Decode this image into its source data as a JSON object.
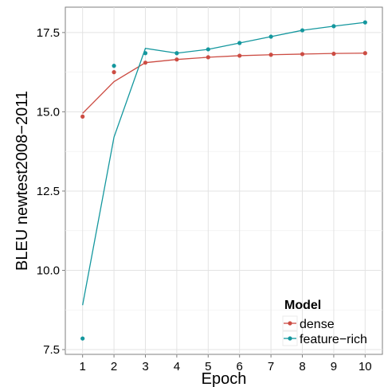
{
  "chart_data": {
    "type": "line",
    "xlabel": "Epoch",
    "ylabel": "BLEU newtest2008−2011",
    "x_ticks": [
      "1",
      "2",
      "3",
      "4",
      "5",
      "6",
      "7",
      "8",
      "9",
      "10"
    ],
    "y_ticks": [
      "7.5",
      "10.0",
      "12.5",
      "15.0",
      "17.5"
    ],
    "xlim": [
      0.45,
      10.55
    ],
    "ylim": [
      7.35,
      18.3
    ],
    "grid": true,
    "legend": {
      "title": "Model",
      "position": "bottom-right"
    },
    "series": [
      {
        "name": "dense",
        "color": "#CC4C43",
        "line": [
          14.95,
          15.95,
          16.55,
          16.65,
          16.72,
          16.77,
          16.8,
          16.82,
          16.84,
          16.85
        ],
        "points": [
          14.85,
          16.25,
          16.55,
          16.65,
          16.72,
          16.77,
          16.8,
          16.82,
          16.83,
          16.85
        ]
      },
      {
        "name": "feature−rich",
        "color": "#14979E",
        "line": [
          8.9,
          14.2,
          17.0,
          16.85,
          16.97,
          17.17,
          17.37,
          17.57,
          17.7,
          17.82
        ],
        "points": [
          7.85,
          16.45,
          16.85,
          16.85,
          16.97,
          17.17,
          17.37,
          17.57,
          17.7,
          17.82
        ]
      }
    ]
  }
}
